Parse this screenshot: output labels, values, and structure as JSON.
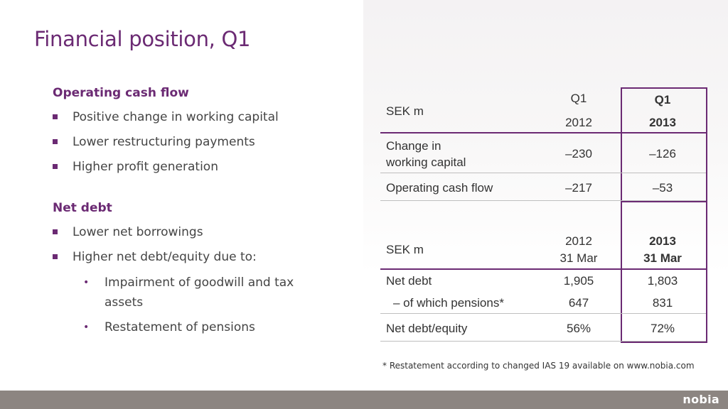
{
  "slide": {
    "title": "Financial position, Q1",
    "sections": [
      {
        "heading": "Operating cash flow",
        "bullets": [
          "Positive change in working capital",
          "Lower restructuring payments",
          "Higher profit generation"
        ]
      },
      {
        "heading": "Net debt",
        "bullets": [
          "Lower net borrowings",
          "Higher net debt/equity due to:"
        ],
        "sub_bullets": [
          "Impairment of goodwill and tax assets",
          "Restatement of pensions"
        ]
      }
    ]
  },
  "table1": {
    "header_label": "SEK m",
    "col_2012": {
      "line1": "Q1",
      "line2": "2012"
    },
    "col_2013": {
      "line1": "Q1",
      "line2": "2013"
    },
    "rows": [
      {
        "label_line1": "Change in",
        "label_line2": "working capital",
        "v2012": "–230",
        "v2013": "–126"
      },
      {
        "label": "Operating cash flow",
        "v2012": "–217",
        "v2013": "–53"
      }
    ]
  },
  "table2": {
    "header_label": "SEK m",
    "col_2012": {
      "line1": "2012",
      "line2": "31 Mar"
    },
    "col_2013": {
      "line1": "2013",
      "line2": "31 Mar"
    },
    "rows": [
      {
        "label": "Net debt",
        "v2012": "1,905",
        "v2013": "1,803"
      },
      {
        "label": "– of which pensions*",
        "v2012": "647",
        "v2013": "831"
      },
      {
        "label": "Net debt/equity",
        "v2012": "56%",
        "v2013": "72%"
      }
    ]
  },
  "footnote": "* Restatement according to changed IAS 19 available on www.nobia.com",
  "logo": "nobia",
  "colors": {
    "accent": "#6b2a73",
    "footer": "#8c8581"
  }
}
